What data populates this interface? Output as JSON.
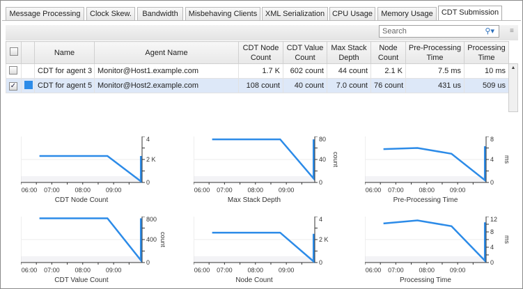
{
  "tabs": [
    "Message Processing",
    "Clock Skew.",
    "Bandwidth",
    "Misbehaving Clients",
    "XML Serialization",
    "CPU Usage",
    "Memory Usage",
    "CDT Submission"
  ],
  "active_tab": "CDT Submission",
  "search": {
    "placeholder": "Search"
  },
  "table": {
    "columns": [
      "Name",
      "Agent Name",
      "CDT Node Count",
      "CDT Value Count",
      "Max Stack Depth",
      "Node Count",
      "Pre-Processing Time",
      "Processing Time"
    ],
    "rows": [
      {
        "checked": false,
        "color": "",
        "name": "CDT for agent 3",
        "agent": "Monitor@Host1.example.com",
        "cdt_node": "1.7 K",
        "cdt_value": "602 count",
        "max_stack": "44 count",
        "node": "2.1 K",
        "pre": "7.5 ms",
        "proc": "10 ms"
      },
      {
        "checked": true,
        "color": "#2c8be8",
        "name": "CDT for agent 5",
        "agent": "Monitor@Host2.example.com",
        "cdt_node": "108 count",
        "cdt_value": "40 count",
        "max_stack": "7.0 count",
        "node": "76 count",
        "pre": "431 us",
        "proc": "509 us"
      }
    ]
  },
  "chart_data": [
    {
      "type": "line",
      "title": "CDT Node Count",
      "ylabel": "",
      "xticks": [
        "06:00",
        "07:00",
        "08:00",
        "09:00"
      ],
      "xlim": [
        6,
        9.92
      ],
      "ylim": [
        0,
        4
      ],
      "yticks": [
        "0",
        "2 K",
        "4"
      ],
      "color": "#2c8be8",
      "x": [
        6.6,
        8.8,
        9.88,
        9.88
      ],
      "y": [
        2.3,
        2.3,
        0.1,
        2.3
      ]
    },
    {
      "type": "line",
      "title": "Max Stack Depth",
      "ylabel": "count",
      "xticks": [
        "06:00",
        "07:00",
        "08:00",
        "09:00"
      ],
      "xlim": [
        6,
        9.92
      ],
      "ylim": [
        0,
        80
      ],
      "yticks": [
        "0",
        "40",
        "80"
      ],
      "color": "#2c8be8",
      "x": [
        6.6,
        8.8,
        9.88,
        9.88
      ],
      "y": [
        75,
        75,
        7,
        75
      ]
    },
    {
      "type": "line",
      "title": "Pre-Processing Time",
      "ylabel": "ms",
      "xticks": [
        "06:00",
        "07:00",
        "08:00",
        "09:00"
      ],
      "xlim": [
        6,
        9.92
      ],
      "ylim": [
        0,
        8
      ],
      "yticks": [
        "0",
        "4",
        "8"
      ],
      "color": "#2c8be8",
      "x": [
        6.6,
        7.7,
        8.8,
        9.88,
        9.88
      ],
      "y": [
        5.8,
        6.0,
        5.0,
        0.4,
        6.3
      ]
    },
    {
      "type": "line",
      "title": "CDT Value Count",
      "ylabel": "count",
      "xticks": [
        "06:00",
        "07:00",
        "08:00",
        "09:00"
      ],
      "xlim": [
        6,
        9.92
      ],
      "ylim": [
        0,
        800
      ],
      "yticks": [
        "0",
        "400",
        "800"
      ],
      "color": "#2c8be8",
      "x": [
        6.6,
        8.8,
        9.88,
        9.88
      ],
      "y": [
        770,
        770,
        40,
        770
      ]
    },
    {
      "type": "line",
      "title": "Node Count",
      "ylabel": "",
      "xticks": [
        "06:00",
        "07:00",
        "08:00",
        "09:00"
      ],
      "xlim": [
        6,
        9.92
      ],
      "ylim": [
        0,
        4
      ],
      "yticks": [
        "0",
        "2 K",
        "4"
      ],
      "color": "#2c8be8",
      "x": [
        6.6,
        8.8,
        9.88,
        9.88
      ],
      "y": [
        2.6,
        2.6,
        0.1,
        2.5
      ]
    },
    {
      "type": "line",
      "title": "Processing Time",
      "ylabel": "ms",
      "xticks": [
        "06:00",
        "07:00",
        "08:00",
        "09:00"
      ],
      "xlim": [
        6,
        9.92
      ],
      "ylim": [
        0,
        12
      ],
      "yticks": [
        "0",
        "4",
        "8",
        "12"
      ],
      "color": "#2c8be8",
      "x": [
        6.6,
        7.7,
        8.8,
        9.88,
        9.88
      ],
      "y": [
        10.2,
        11,
        9.5,
        0.5,
        10.5
      ]
    }
  ]
}
